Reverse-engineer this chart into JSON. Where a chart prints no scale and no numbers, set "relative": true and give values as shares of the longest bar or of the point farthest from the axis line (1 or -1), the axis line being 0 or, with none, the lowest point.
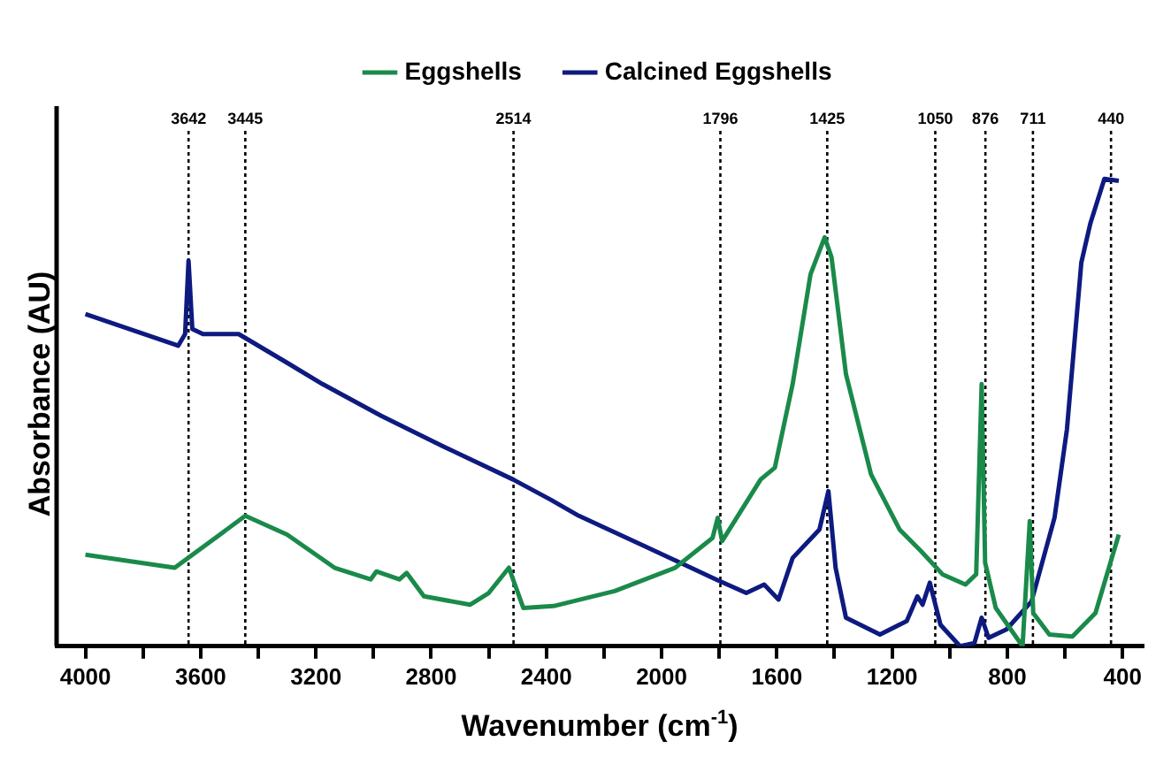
{
  "chart_data": {
    "type": "line",
    "xlabel": "Wavenumber (cm$^{-1}$)",
    "ylabel": "Absorbance (AU)",
    "relative": true,
    "xlim": [
      4100,
      330
    ],
    "xticks": [
      4000,
      {
        "value": 3800,
        "label": null
      },
      3600,
      {
        "value": 3400,
        "label": null
      },
      3200,
      {
        "value": 3000,
        "label": null
      },
      2800,
      {
        "value": 2600,
        "label": null
      },
      2400,
      {
        "value": 2200,
        "label": null
      },
      2000,
      {
        "value": 1800,
        "label": null
      },
      1600,
      {
        "value": 1400,
        "label": null
      },
      1200,
      {
        "value": 1000,
        "label": null
      },
      800,
      {
        "value": 600,
        "label": null
      },
      400
    ],
    "legend": "top",
    "grid": false,
    "marker": "none",
    "line_style": "solid",
    "series": [
      {
        "name": "Eggshells",
        "color": "#1a8a4a",
        "x": [
          4000,
          3690,
          3445,
          3300,
          3135,
          3010,
          2990,
          2910,
          2885,
          2825,
          2665,
          2600,
          2530,
          2480,
          2375,
          2163,
          1953,
          1823,
          1805,
          1790,
          1656,
          1607,
          1545,
          1483,
          1434,
          1410,
          1360,
          1273,
          1174,
          1100,
          1025,
          945,
          908,
          889,
          877,
          840,
          747,
          722,
          710,
          654,
          574,
          494,
          413
        ],
        "values": [
          0.196,
          0.168,
          0.279,
          0.239,
          0.168,
          0.143,
          0.16,
          0.143,
          0.157,
          0.107,
          0.089,
          0.114,
          0.168,
          0.082,
          0.086,
          0.118,
          0.168,
          0.232,
          0.275,
          0.225,
          0.357,
          0.382,
          0.561,
          0.796,
          0.875,
          0.832,
          0.582,
          0.368,
          0.25,
          0.204,
          0.154,
          0.132,
          0.154,
          0.561,
          0.179,
          0.082,
          0,
          0.268,
          0.071,
          0.025,
          0.021,
          0.071,
          0.239
        ]
      },
      {
        "name": "Calcined Eggshells",
        "color": "#0d1a80",
        "x": [
          4000,
          3678,
          3654,
          3642,
          3629,
          3592,
          3468,
          3301,
          3177,
          2973,
          2763,
          2516,
          2386,
          2287,
          2058,
          1811,
          1706,
          1644,
          1594,
          1545,
          1452,
          1421,
          1396,
          1360,
          1242,
          1149,
          1112,
          1094,
          1069,
          1032,
          964,
          914,
          889,
          865,
          803,
          716,
          636,
          593,
          543,
          512,
          463,
          413
        ],
        "values": [
          0.711,
          0.643,
          0.668,
          0.825,
          0.679,
          0.668,
          0.668,
          0.607,
          0.561,
          0.493,
          0.429,
          0.357,
          0.314,
          0.279,
          0.214,
          0.143,
          0.114,
          0.132,
          0.1,
          0.189,
          0.25,
          0.332,
          0.168,
          0.061,
          0.025,
          0.054,
          0.107,
          0.089,
          0.136,
          0.046,
          0,
          0.007,
          0.061,
          0.018,
          0.036,
          0.096,
          0.275,
          0.464,
          0.821,
          0.904,
          1,
          0.996
        ]
      }
    ],
    "ref_lines": [
      {
        "axis": "x",
        "value": 3642,
        "label": "3642",
        "color": "#000000",
        "line_style": "dotted"
      },
      {
        "axis": "x",
        "value": 3445,
        "label": "3445",
        "color": "#000000",
        "line_style": "dotted"
      },
      {
        "axis": "x",
        "value": 2514,
        "label": "2514",
        "color": "#000000",
        "line_style": "dotted"
      },
      {
        "axis": "x",
        "value": 1796,
        "label": "1796",
        "color": "#000000",
        "line_style": "dotted"
      },
      {
        "axis": "x",
        "value": 1425,
        "label": "1425",
        "color": "#000000",
        "line_style": "dotted"
      },
      {
        "axis": "x",
        "value": 1050,
        "label": "1050",
        "color": "#000000",
        "line_style": "dotted"
      },
      {
        "axis": "x",
        "value": 876,
        "label": "876",
        "color": "#000000",
        "line_style": "dotted"
      },
      {
        "axis": "x",
        "value": 711,
        "label": "711",
        "color": "#000000",
        "line_style": "dotted"
      },
      {
        "axis": "x",
        "value": 440,
        "label": "440",
        "color": "#000000",
        "line_style": "dotted"
      }
    ]
  }
}
